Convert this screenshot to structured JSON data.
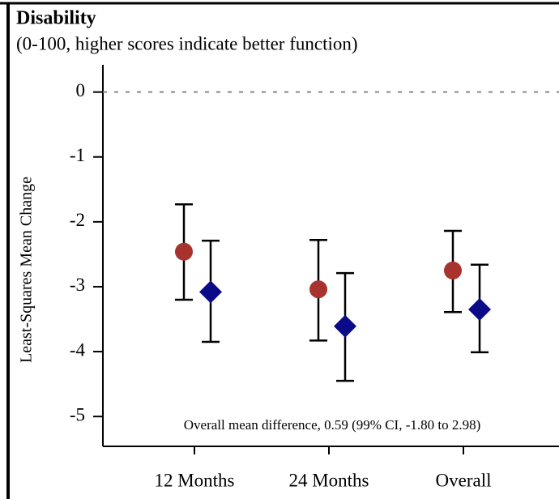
{
  "chart_data": {
    "type": "errorbar",
    "title": "Disability",
    "subtitle": "(0-100, higher scores indicate better function)",
    "y_label": "Least-Squares Mean Change",
    "annotation": "Overall mean difference, 0.59 (99% CI, -1.80 to 2.98)",
    "categories": [
      "12 Months",
      "24 Months",
      "Overall"
    ],
    "series": [
      {
        "color": "#a8322d",
        "marker": "circle",
        "values": [
          -2.46,
          -3.04,
          -2.75
        ],
        "lower": [
          -3.2,
          -3.83,
          -3.39
        ],
        "upper": [
          -1.73,
          -2.28,
          -2.14
        ]
      },
      {
        "color": "#0b0b8a",
        "marker": "diamond",
        "values": [
          -3.08,
          -3.61,
          -3.35
        ],
        "lower": [
          -3.85,
          -4.45,
          -4.01
        ],
        "upper": [
          -2.29,
          -2.79,
          -2.66
        ]
      }
    ],
    "ylim": [
      -5.46,
      0.42
    ],
    "yticks": [
      0,
      -1,
      -2,
      -3,
      -4,
      -5
    ],
    "reference_line": 0
  }
}
